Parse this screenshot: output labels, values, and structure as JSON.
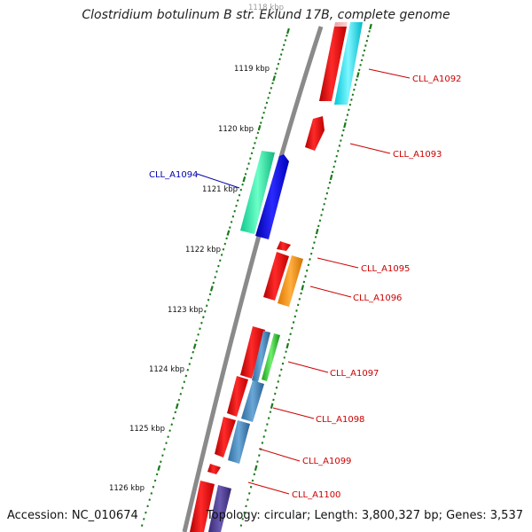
{
  "title": "Clostridium botulinum B str. Eklund 17B, complete genome",
  "accession_text": "Accession: NC_010674",
  "topology_text": "Topology: circular; Length: 3,800,327 bp; Genes: 3,537",
  "kbp_labels": [
    "1118 kbp",
    "1119 kbp",
    "1120 kbp",
    "1121 kbp",
    "1122 kbp",
    "1123 kbp",
    "1124 kbp",
    "1125 kbp",
    "1126 kbp"
  ],
  "gene_labels": [
    {
      "text": "CLL_A1092",
      "strand": "forward"
    },
    {
      "text": "CLL_A1093",
      "strand": "forward"
    },
    {
      "text": "CLL_A1094",
      "strand": "reverse"
    },
    {
      "text": "CLL_A1095",
      "strand": "forward"
    },
    {
      "text": "CLL_A1096",
      "strand": "forward"
    },
    {
      "text": "CLL_A1097",
      "strand": "forward"
    },
    {
      "text": "CLL_A1098",
      "strand": "forward"
    },
    {
      "text": "CLL_A1099",
      "strand": "forward"
    },
    {
      "text": "CLL_A1100",
      "strand": "forward"
    }
  ],
  "colors": {
    "forward_label": "#cc0000",
    "reverse_label": "#0000aa",
    "backbone": "#888888",
    "tick": "#1a7a1a"
  }
}
